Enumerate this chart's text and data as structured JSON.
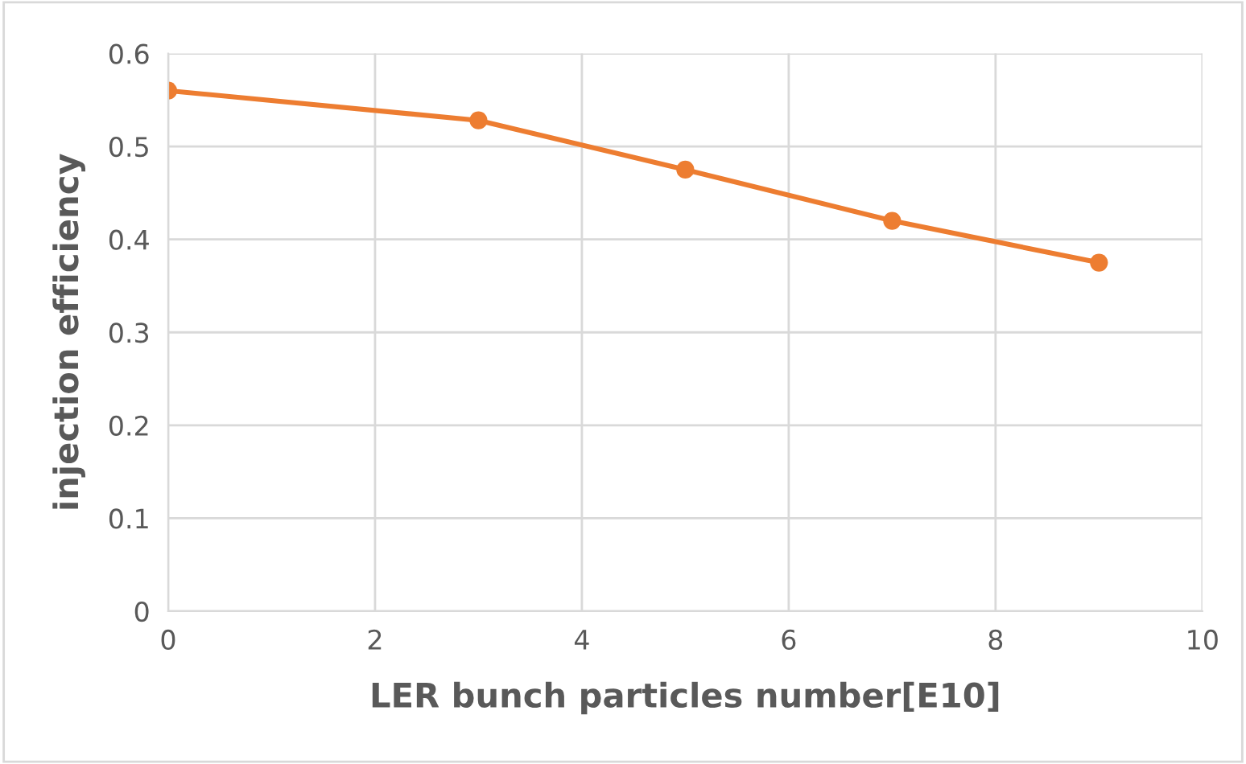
{
  "chart_data": {
    "type": "line",
    "xlabel": "LER bunch particles number[E10]",
    "ylabel": "injection efficiency",
    "x": [
      0,
      3,
      5,
      7,
      9
    ],
    "series": [
      {
        "color": "#ed7d31",
        "values": [
          0.56,
          0.528,
          0.475,
          0.42,
          0.375
        ]
      }
    ],
    "xlim": [
      0,
      10
    ],
    "xticks": [
      0,
      2,
      4,
      6,
      8,
      10
    ],
    "ylim": [
      0,
      0.6
    ],
    "yticks": [
      0,
      0.1,
      0.2,
      0.3,
      0.4,
      0.5,
      0.6
    ],
    "grid": true,
    "marker": "circle",
    "line_style": "solid"
  }
}
